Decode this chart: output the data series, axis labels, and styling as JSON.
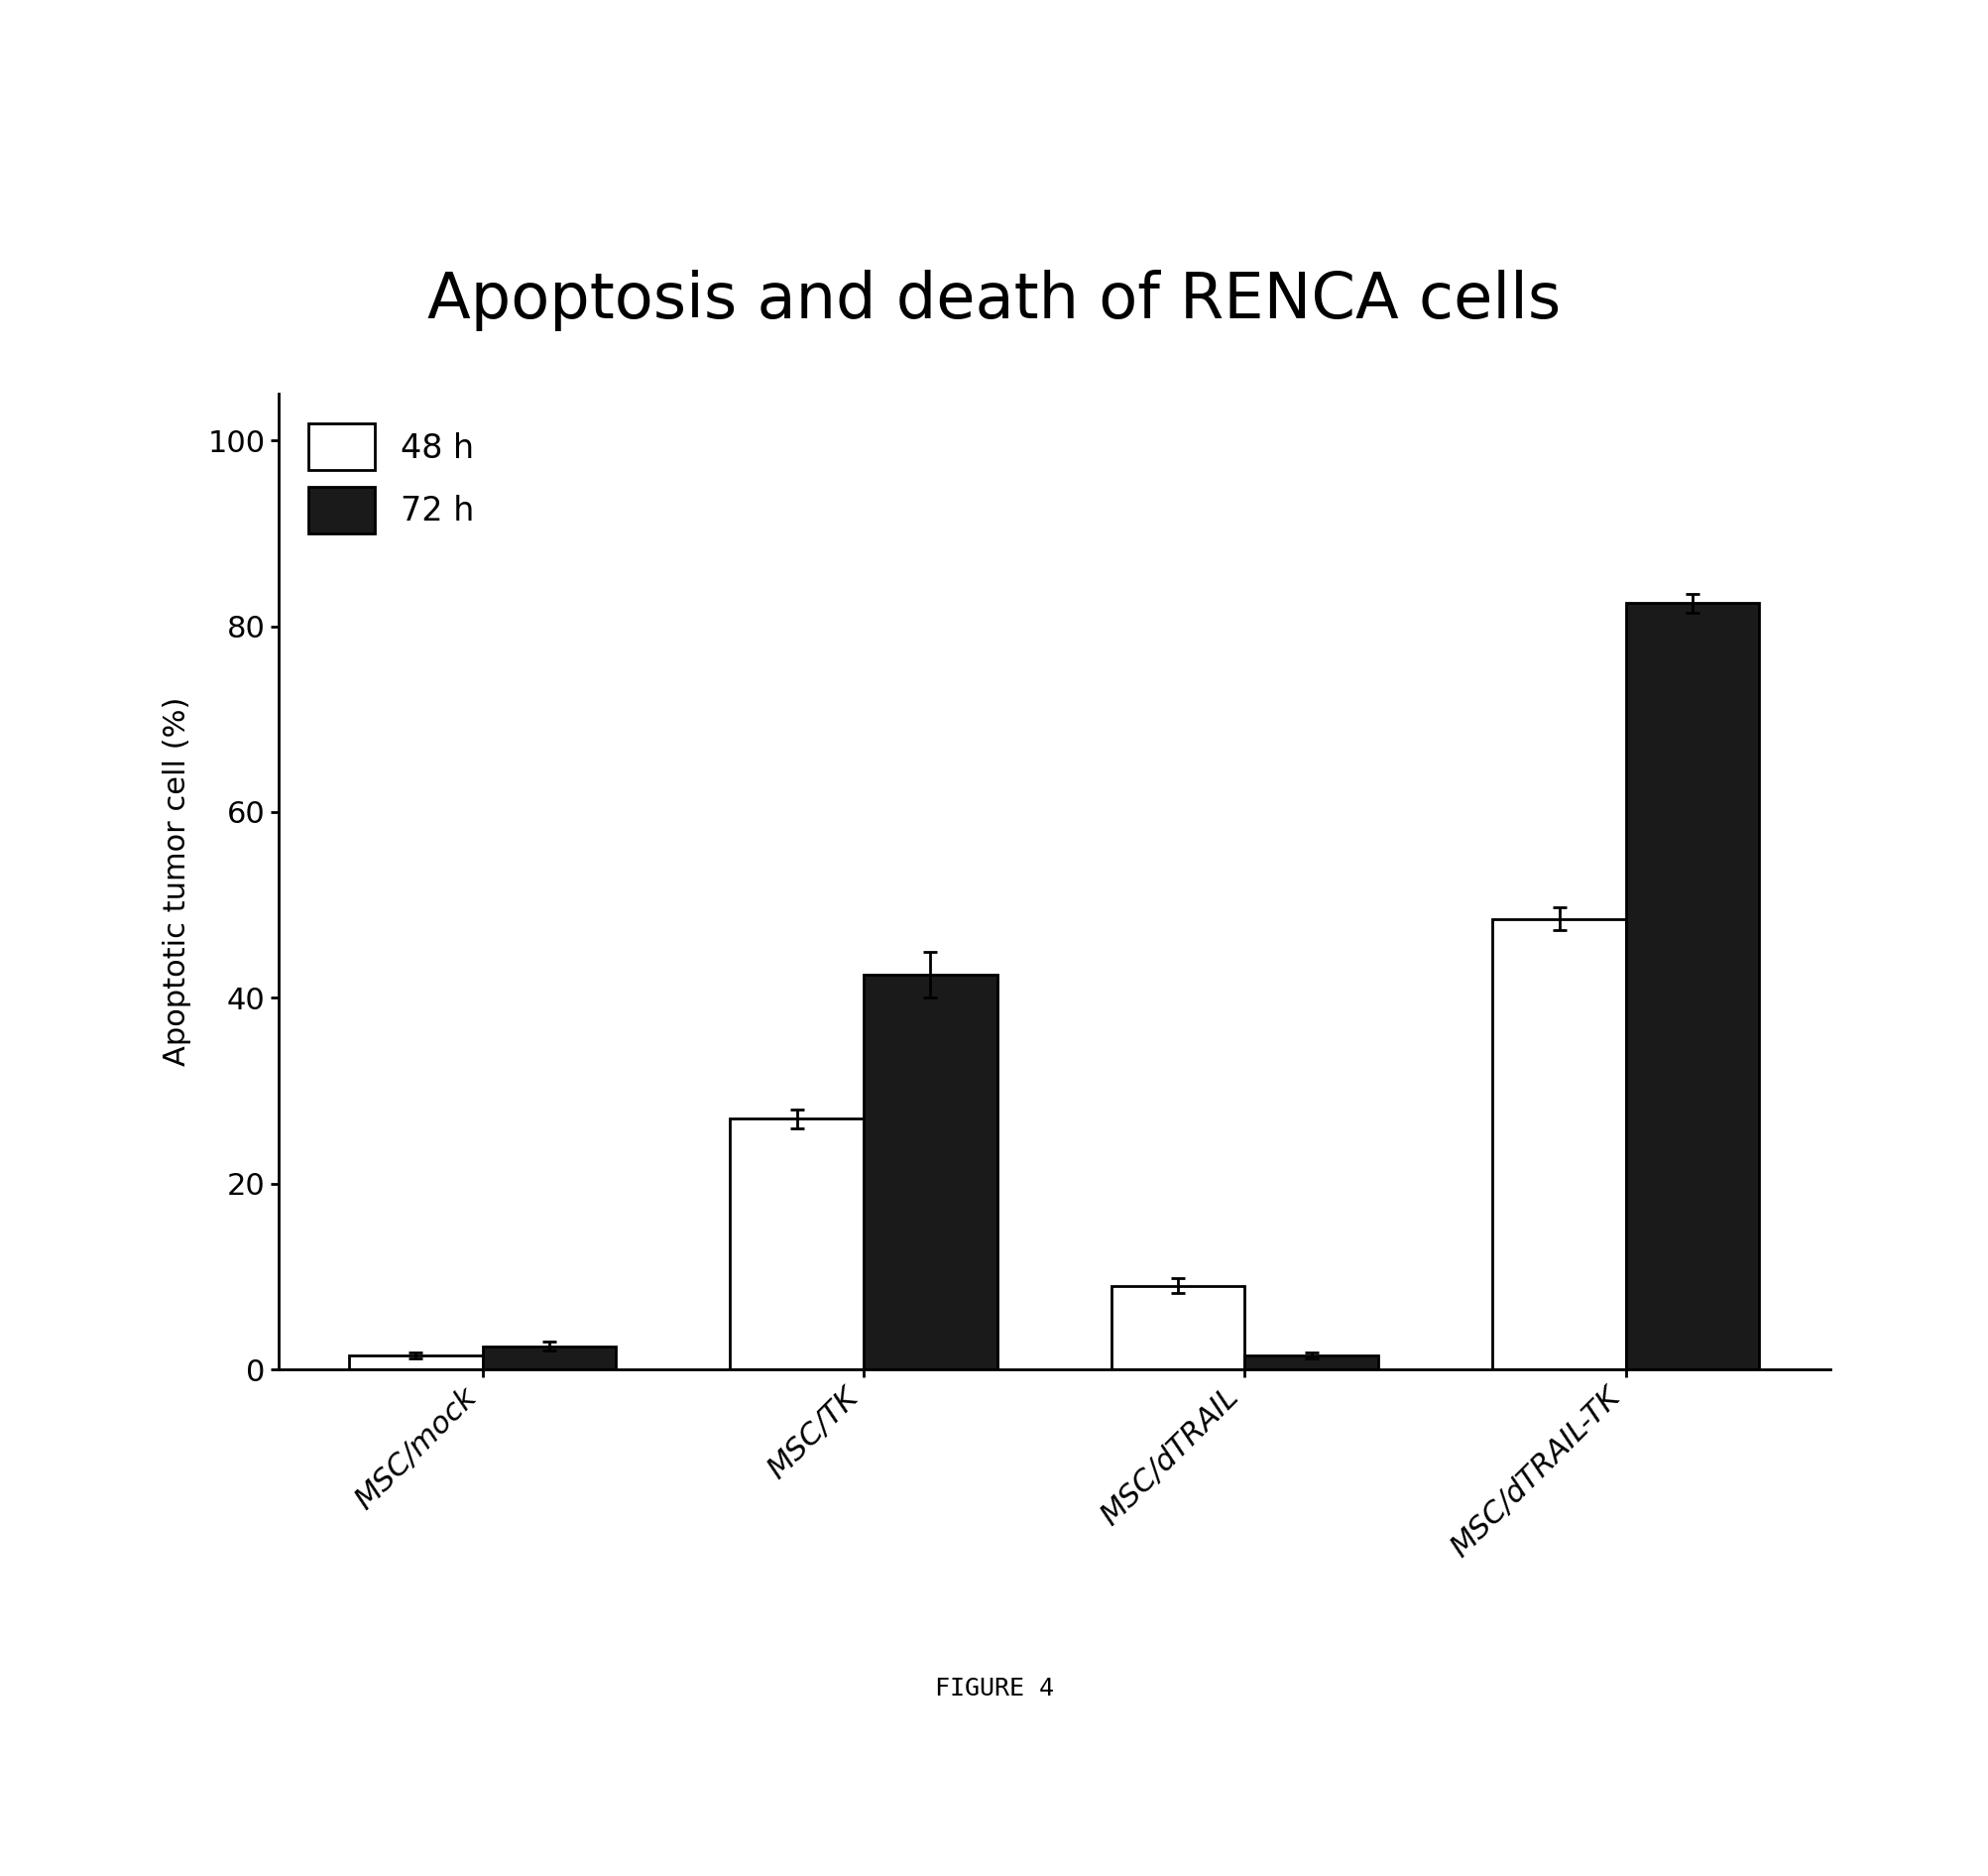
{
  "title": "Apoptosis and death of RENCA cells",
  "ylabel": "Apoptotic tumor cell (%)",
  "categories": [
    "MSC/mock",
    "MSC/TK",
    "MSC/dTRAIL",
    "MSC/dTRAIL-TK"
  ],
  "values_48h": [
    1.5,
    27.0,
    9.0,
    48.5
  ],
  "values_72h": [
    2.5,
    42.5,
    1.5,
    82.5
  ],
  "errors_48h": [
    0.3,
    1.0,
    0.8,
    1.2
  ],
  "errors_72h": [
    0.5,
    2.5,
    0.3,
    1.0
  ],
  "color_48h": "#ffffff",
  "color_72h": "#1a1a1a",
  "edge_color": "#000000",
  "bar_width": 0.35,
  "ylim": [
    0,
    105
  ],
  "yticks": [
    0,
    20,
    40,
    60,
    80,
    100
  ],
  "legend_labels": [
    "48 h",
    "72 h"
  ],
  "figure_caption": "FIGURE 4",
  "title_fontsize": 46,
  "axis_fontsize": 22,
  "tick_fontsize": 22,
  "legend_fontsize": 24,
  "caption_fontsize": 18,
  "xticklabel_fontsize": 22,
  "background_color": "#ffffff"
}
